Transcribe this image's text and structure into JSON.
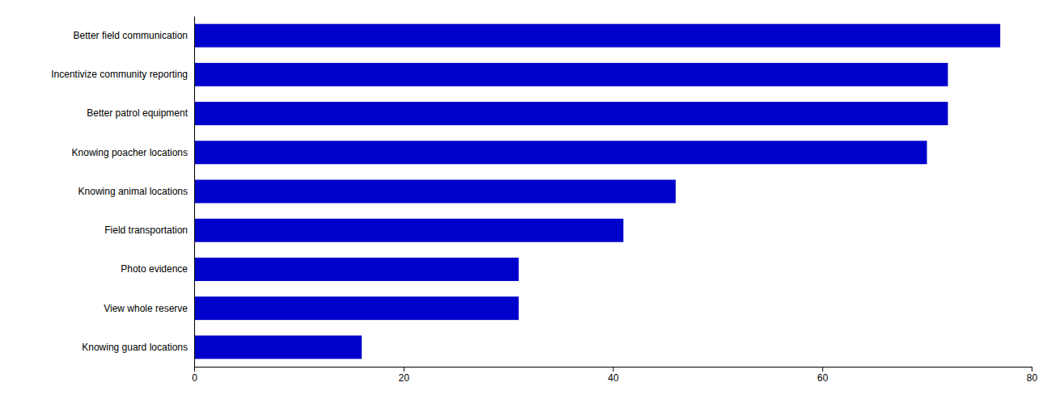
{
  "chart_data": {
    "type": "bar",
    "orientation": "horizontal",
    "categories": [
      "Knowing guard locations",
      "View whole reserve",
      "Photo evidence",
      "Field transportation",
      "Knowing animal locations",
      "Knowing poacher locations",
      "Better patrol equipment",
      "Incentivize community reporting",
      "Better field communication"
    ],
    "values": [
      16,
      31,
      31,
      41,
      46,
      70,
      72,
      72,
      77
    ],
    "color": "#0000CC",
    "xlim": [
      0,
      80
    ],
    "xticks": [
      0,
      20,
      40,
      60,
      80
    ]
  }
}
